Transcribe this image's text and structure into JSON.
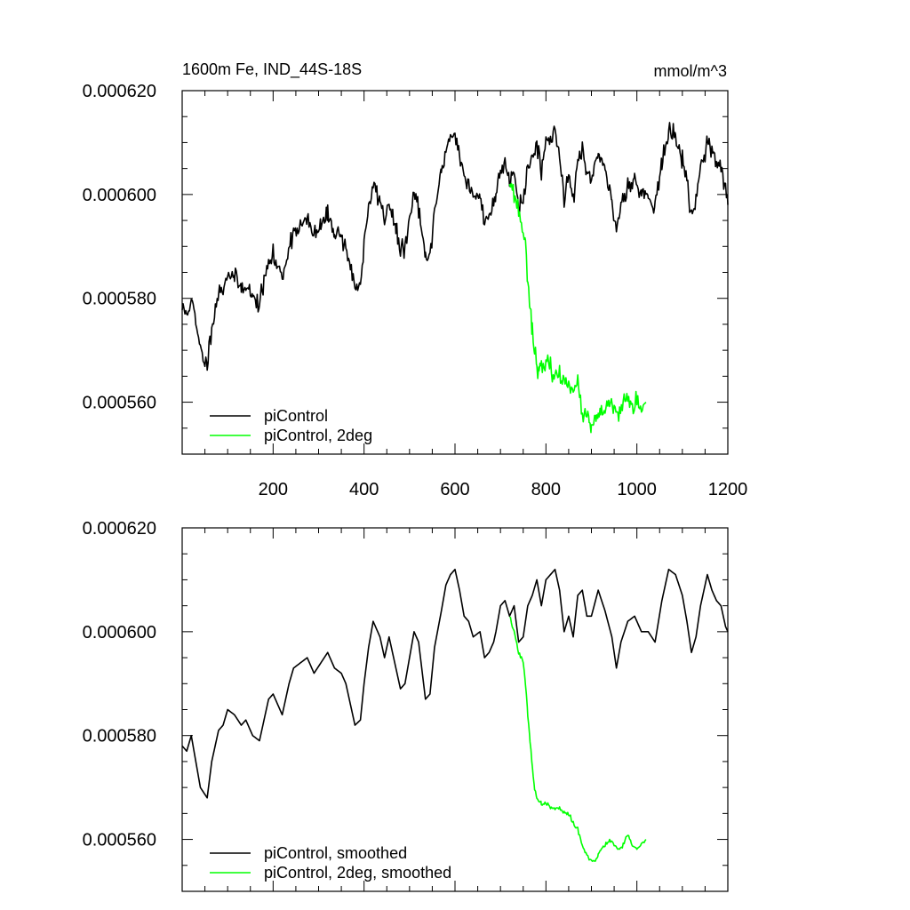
{
  "colors": {
    "control": "#000000",
    "twodeg": "#00ff00"
  },
  "chart_data": [
    {
      "type": "line",
      "title": "1600m Fe, IND_44S-18S",
      "units": "mmol/m^3",
      "xlim": [
        0,
        1200
      ],
      "ylim": [
        0.00055,
        0.00062
      ],
      "x_ticks": [
        200,
        400,
        600,
        800,
        1000,
        1200
      ],
      "x_tick_labels": [
        "200",
        "400",
        "600",
        "800",
        "1000",
        "1200"
      ],
      "y_ticks": [
        0.00056,
        0.00058,
        0.0006,
        0.00062
      ],
      "y_tick_labels": [
        "0.000560",
        "0.000580",
        "0.000600",
        "0.000620"
      ],
      "legend": [
        "piControl",
        "piControl, 2deg"
      ],
      "series": [
        {
          "name": "piControl",
          "color": "#000000",
          "noise": 9e-07,
          "seed": 11,
          "x": [
            0,
            10,
            20,
            30,
            40,
            55,
            65,
            80,
            90,
            100,
            115,
            130,
            140,
            155,
            170,
            180,
            190,
            200,
            210,
            220,
            235,
            245,
            260,
            275,
            290,
            305,
            320,
            335,
            350,
            360,
            370,
            380,
            392,
            400,
            410,
            420,
            435,
            445,
            455,
            470,
            480,
            490,
            500,
            510,
            520,
            535,
            545,
            555,
            570,
            580,
            590,
            600,
            610,
            620,
            630,
            640,
            655,
            665,
            675,
            685,
            690,
            700,
            710,
            720,
            730,
            740,
            750,
            760,
            770,
            780,
            790,
            800,
            810,
            820,
            830,
            840,
            850,
            860,
            870,
            880,
            890,
            900,
            915,
            930,
            945,
            955,
            965,
            980,
            995,
            1010,
            1025,
            1040,
            1055,
            1070,
            1085,
            1100,
            1110,
            1120,
            1130,
            1140,
            1155,
            1165,
            1175,
            1185,
            1195,
            1200
          ],
          "y": [
            0.000578,
            0.000577,
            0.00058,
            0.000575,
            0.00057,
            0.000567,
            0.000575,
            0.000581,
            0.000582,
            0.000585,
            0.000584,
            0.000582,
            0.000583,
            0.00058,
            0.000579,
            0.000583,
            0.000587,
            0.000588,
            0.000586,
            0.000584,
            0.00059,
            0.000593,
            0.000594,
            0.000595,
            0.000592,
            0.000594,
            0.000596,
            0.000593,
            0.000592,
            0.00059,
            0.000586,
            0.000582,
            0.000583,
            0.00059,
            0.000597,
            0.000602,
            0.000599,
            0.000595,
            0.000599,
            0.000593,
            0.000589,
            0.00059,
            0.000595,
            0.0006,
            0.000598,
            0.000587,
            0.000588,
            0.000597,
            0.000604,
            0.000609,
            0.000611,
            0.000612,
            0.000608,
            0.000603,
            0.000602,
            0.000599,
            0.0006,
            0.000595,
            0.000596,
            0.000598,
            0.0006,
            0.000605,
            0.000606,
            0.000603,
            0.000605,
            0.000598,
            0.000599,
            0.000605,
            0.000607,
            0.00061,
            0.000605,
            0.00061,
            0.000611,
            0.000612,
            0.000608,
            0.0006,
            0.000603,
            0.000599,
            0.000607,
            0.000608,
            0.000603,
            0.000603,
            0.000608,
            0.000604,
            0.000599,
            0.000593,
            0.000598,
            0.000602,
            0.000603,
            0.0006,
            0.0006,
            0.000598,
            0.000606,
            0.000612,
            0.000611,
            0.000607,
            0.000602,
            0.000596,
            0.000599,
            0.000605,
            0.000611,
            0.000608,
            0.000606,
            0.000605,
            0.000601,
            0.000598
          ]
        },
        {
          "name": "piControl, 2deg",
          "color": "#00ff00",
          "noise": 9e-07,
          "seed": 23,
          "x": [
            720,
            730,
            740,
            750,
            755,
            760,
            765,
            770,
            775,
            780,
            785,
            790,
            800,
            810,
            820,
            830,
            840,
            850,
            860,
            870,
            880,
            890,
            895,
            900,
            905,
            910,
            915,
            920,
            930,
            940,
            950,
            960,
            970,
            980,
            990,
            1000,
            1010,
            1020
          ],
          "y": [
            0.000603,
            0.0006,
            0.000597,
            0.000593,
            0.00059,
            0.000584,
            0.000579,
            0.000574,
            0.00057,
            0.000567,
            0.000567,
            0.000566,
            0.000567,
            0.000567,
            0.000565,
            0.000565,
            0.000564,
            0.000564,
            0.000563,
            0.000563,
            0.000558,
            0.000557,
            0.000556,
            0.000555,
            0.000556,
            0.000557,
            0.000556,
            0.000558,
            0.000559,
            0.000559,
            0.000559,
            0.000557,
            0.00056,
            0.000561,
            0.000559,
            0.00056,
            0.000558,
            0.00056
          ]
        }
      ]
    },
    {
      "type": "line",
      "xlim": [
        0,
        1200
      ],
      "ylim": [
        0.00055,
        0.00062
      ],
      "x_ticks": [
        200,
        400,
        600,
        800,
        1000,
        1200
      ],
      "y_ticks": [
        0.00056,
        0.00058,
        0.0006,
        0.00062
      ],
      "y_tick_labels": [
        "0.000560",
        "0.000580",
        "0.000600",
        "0.000620"
      ],
      "legend": [
        "piControl, smoothed",
        "piControl, 2deg, smoothed"
      ],
      "series": [
        {
          "name": "piControl, smoothed",
          "color": "#000000",
          "noise": 0.0,
          "x": [
            0,
            10,
            20,
            30,
            40,
            55,
            65,
            80,
            90,
            100,
            115,
            130,
            140,
            155,
            170,
            180,
            190,
            200,
            210,
            220,
            235,
            245,
            260,
            275,
            290,
            305,
            320,
            335,
            350,
            360,
            370,
            380,
            392,
            400,
            410,
            420,
            435,
            445,
            455,
            470,
            480,
            490,
            500,
            510,
            520,
            535,
            545,
            555,
            570,
            580,
            590,
            600,
            610,
            620,
            630,
            640,
            655,
            665,
            675,
            685,
            690,
            700,
            710,
            720,
            730,
            740,
            750,
            760,
            770,
            780,
            790,
            800,
            810,
            820,
            830,
            840,
            850,
            860,
            870,
            880,
            890,
            900,
            915,
            930,
            945,
            955,
            965,
            980,
            995,
            1010,
            1025,
            1040,
            1055,
            1070,
            1085,
            1100,
            1110,
            1120,
            1130,
            1140,
            1155,
            1165,
            1175,
            1185,
            1195,
            1200
          ],
          "y": [
            0.000578,
            0.000577,
            0.00058,
            0.000575,
            0.00057,
            0.000568,
            0.000575,
            0.000581,
            0.000582,
            0.000585,
            0.000584,
            0.000582,
            0.000583,
            0.00058,
            0.000579,
            0.000583,
            0.000587,
            0.000588,
            0.000586,
            0.000584,
            0.00059,
            0.000593,
            0.000594,
            0.000595,
            0.000592,
            0.000594,
            0.000596,
            0.000593,
            0.000592,
            0.00059,
            0.000586,
            0.000582,
            0.000583,
            0.00059,
            0.000597,
            0.000602,
            0.000599,
            0.000595,
            0.000599,
            0.000593,
            0.000589,
            0.00059,
            0.000595,
            0.0006,
            0.000598,
            0.000587,
            0.000588,
            0.000597,
            0.000604,
            0.000609,
            0.000611,
            0.000612,
            0.000608,
            0.000603,
            0.000602,
            0.000599,
            0.0006,
            0.000595,
            0.000596,
            0.000598,
            0.0006,
            0.000605,
            0.000606,
            0.000603,
            0.000605,
            0.000598,
            0.000599,
            0.000605,
            0.000607,
            0.00061,
            0.000605,
            0.00061,
            0.000611,
            0.000612,
            0.000608,
            0.0006,
            0.000603,
            0.000599,
            0.000607,
            0.000608,
            0.000603,
            0.000603,
            0.000608,
            0.000604,
            0.000599,
            0.000593,
            0.000598,
            0.000602,
            0.000603,
            0.0006,
            0.0006,
            0.000598,
            0.000606,
            0.000612,
            0.000611,
            0.000607,
            0.000602,
            0.000596,
            0.000599,
            0.000605,
            0.000611,
            0.000608,
            0.000606,
            0.000605,
            0.000601,
            0.0006
          ]
        },
        {
          "name": "piControl, 2deg, smoothed",
          "color": "#00ff00",
          "noise": 2e-07,
          "seed": 37,
          "x": [
            720,
            730,
            740,
            750,
            755,
            760,
            765,
            770,
            775,
            780,
            785,
            790,
            800,
            810,
            820,
            830,
            840,
            850,
            860,
            870,
            880,
            890,
            895,
            900,
            905,
            910,
            915,
            920,
            930,
            940,
            950,
            960,
            970,
            980,
            990,
            1000,
            1010,
            1020
          ],
          "y": [
            0.000603,
            0.0006,
            0.000596,
            0.000594,
            0.00059,
            0.000584,
            0.000579,
            0.000574,
            0.00057,
            0.000568,
            0.000567,
            0.000567,
            0.000567,
            0.000566,
            0.000566,
            0.000566,
            0.000565,
            0.000565,
            0.000563,
            0.000562,
            0.000559,
            0.000557,
            0.000556,
            0.000556,
            0.000556,
            0.000556,
            0.000557,
            0.000558,
            0.000559,
            0.00056,
            0.000559,
            0.000558,
            0.000559,
            0.000561,
            0.000559,
            0.000558,
            0.000559,
            0.00056
          ]
        }
      ]
    }
  ]
}
